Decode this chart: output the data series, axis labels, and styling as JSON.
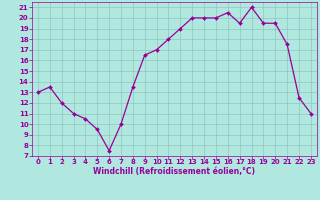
{
  "x": [
    0,
    1,
    2,
    3,
    4,
    5,
    6,
    7,
    8,
    9,
    10,
    11,
    12,
    13,
    14,
    15,
    16,
    17,
    18,
    19,
    20,
    21,
    22,
    23
  ],
  "y": [
    13,
    13.5,
    12,
    11,
    10.5,
    9.5,
    7.5,
    10,
    13.5,
    16.5,
    17,
    18,
    19,
    20,
    20,
    20,
    20.5,
    19.5,
    21,
    19.5,
    19.5,
    17.5,
    12.5,
    11
  ],
  "line_color": "#990099",
  "marker_color": "#990099",
  "bg_color": "#b0e8e0",
  "grid_color": "#90c8c0",
  "xlabel": "Windchill (Refroidissement éolien,°C)",
  "xlabel_color": "#990099",
  "ylim": [
    7,
    21.5
  ],
  "xlim": [
    -0.5,
    23.5
  ],
  "yticks": [
    7,
    8,
    9,
    10,
    11,
    12,
    13,
    14,
    15,
    16,
    17,
    18,
    19,
    20,
    21
  ],
  "xticks": [
    0,
    1,
    2,
    3,
    4,
    5,
    6,
    7,
    8,
    9,
    10,
    11,
    12,
    13,
    14,
    15,
    16,
    17,
    18,
    19,
    20,
    21,
    22,
    23
  ],
  "tick_color": "#990099",
  "marker_size": 2.0,
  "line_width": 0.9,
  "tick_fontsize": 5.0,
  "xlabel_fontsize": 5.5
}
